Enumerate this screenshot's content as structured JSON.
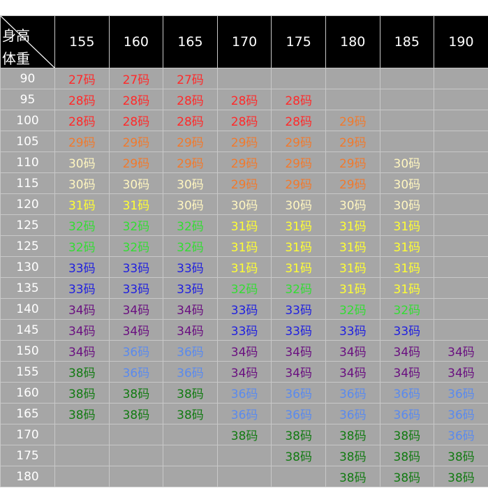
{
  "corner": {
    "top": "身高",
    "bottom": "体重"
  },
  "heights": [
    "155",
    "160",
    "165",
    "170",
    "175",
    "180",
    "185",
    "190"
  ],
  "colors": {
    "red": "#ff2a2a",
    "orange": "#f07a2e",
    "cream": "#fff6c0",
    "yellow": "#ffff33",
    "green": "#33dd33",
    "blue": "#1f1fe0",
    "purple": "#6a1080",
    "light_blue": "#5a8aee",
    "dark_green": "#117a11"
  },
  "rows": [
    {
      "weight": "90",
      "cells": [
        [
          "27码",
          "red"
        ],
        [
          "27码",
          "red"
        ],
        [
          "27码",
          "red"
        ],
        null,
        null,
        null,
        null,
        null
      ]
    },
    {
      "weight": "95",
      "cells": [
        [
          "28码",
          "red"
        ],
        [
          "28码",
          "red"
        ],
        [
          "28码",
          "red"
        ],
        [
          "28码",
          "red"
        ],
        [
          "28码",
          "red"
        ],
        null,
        null,
        null
      ]
    },
    {
      "weight": "100",
      "cells": [
        [
          "28码",
          "red"
        ],
        [
          "28码",
          "red"
        ],
        [
          "28码",
          "red"
        ],
        [
          "28码",
          "red"
        ],
        [
          "28码",
          "red"
        ],
        [
          "29码",
          "orange"
        ],
        null,
        null
      ]
    },
    {
      "weight": "105",
      "cells": [
        [
          "29码",
          "orange"
        ],
        [
          "29码",
          "orange"
        ],
        [
          "29码",
          "orange"
        ],
        [
          "29码",
          "orange"
        ],
        [
          "29码",
          "orange"
        ],
        [
          "29码",
          "orange"
        ],
        null,
        null
      ]
    },
    {
      "weight": "110",
      "cells": [
        [
          "30码",
          "cream"
        ],
        [
          "29码",
          "orange"
        ],
        [
          "29码",
          "orange"
        ],
        [
          "29码",
          "orange"
        ],
        [
          "29码",
          "orange"
        ],
        [
          "29码",
          "orange"
        ],
        [
          "30码",
          "cream"
        ],
        null
      ]
    },
    {
      "weight": "115",
      "cells": [
        [
          "30码",
          "cream"
        ],
        [
          "30码",
          "cream"
        ],
        [
          "30码",
          "cream"
        ],
        [
          "29码",
          "orange"
        ],
        [
          "29码",
          "orange"
        ],
        [
          "29码",
          "orange"
        ],
        [
          "30码",
          "cream"
        ],
        null
      ]
    },
    {
      "weight": "120",
      "cells": [
        [
          "31码",
          "yellow"
        ],
        [
          "31码",
          "yellow"
        ],
        [
          "30码",
          "cream"
        ],
        [
          "30码",
          "cream"
        ],
        [
          "30码",
          "cream"
        ],
        [
          "30码",
          "cream"
        ],
        [
          "30码",
          "cream"
        ],
        null
      ]
    },
    {
      "weight": "125",
      "cells": [
        [
          "32码",
          "green"
        ],
        [
          "32码",
          "green"
        ],
        [
          "32码",
          "green"
        ],
        [
          "31码",
          "yellow"
        ],
        [
          "31码",
          "yellow"
        ],
        [
          "31码",
          "yellow"
        ],
        [
          "31码",
          "yellow"
        ],
        null
      ]
    },
    {
      "weight": "125",
      "cells": [
        [
          "32码",
          "green"
        ],
        [
          "32码",
          "green"
        ],
        [
          "32码",
          "green"
        ],
        [
          "31码",
          "yellow"
        ],
        [
          "31码",
          "yellow"
        ],
        [
          "31码",
          "yellow"
        ],
        [
          "31码",
          "yellow"
        ],
        null
      ]
    },
    {
      "weight": "130",
      "cells": [
        [
          "33码",
          "blue"
        ],
        [
          "33码",
          "blue"
        ],
        [
          "33码",
          "blue"
        ],
        [
          "31码",
          "yellow"
        ],
        [
          "31码",
          "yellow"
        ],
        [
          "31码",
          "yellow"
        ],
        [
          "31码",
          "yellow"
        ],
        null
      ]
    },
    {
      "weight": "135",
      "cells": [
        [
          "33码",
          "blue"
        ],
        [
          "33码",
          "blue"
        ],
        [
          "33码",
          "blue"
        ],
        [
          "32码",
          "green"
        ],
        [
          "32码",
          "green"
        ],
        [
          "31码",
          "yellow"
        ],
        [
          "31码",
          "yellow"
        ],
        null
      ]
    },
    {
      "weight": "140",
      "cells": [
        [
          "34码",
          "purple"
        ],
        [
          "34码",
          "purple"
        ],
        [
          "34码",
          "purple"
        ],
        [
          "33码",
          "blue"
        ],
        [
          "33码",
          "blue"
        ],
        [
          "32码",
          "green"
        ],
        [
          "32码",
          "green"
        ],
        null
      ]
    },
    {
      "weight": "145",
      "cells": [
        [
          "34码",
          "purple"
        ],
        [
          "34码",
          "purple"
        ],
        [
          "34码",
          "purple"
        ],
        [
          "33码",
          "blue"
        ],
        [
          "33码",
          "blue"
        ],
        [
          "33码",
          "blue"
        ],
        [
          "33码",
          "blue"
        ],
        null
      ]
    },
    {
      "weight": "150",
      "cells": [
        [
          "34码",
          "purple"
        ],
        [
          "36码",
          "light_blue"
        ],
        [
          "36码",
          "light_blue"
        ],
        [
          "34码",
          "purple"
        ],
        [
          "34码",
          "purple"
        ],
        [
          "34码",
          "purple"
        ],
        [
          "34码",
          "purple"
        ],
        [
          "34码",
          "purple"
        ]
      ]
    },
    {
      "weight": "155",
      "cells": [
        [
          "38码",
          "dark_green"
        ],
        [
          "36码",
          "light_blue"
        ],
        [
          "36码",
          "light_blue"
        ],
        [
          "34码",
          "purple"
        ],
        [
          "34码",
          "purple"
        ],
        [
          "34码",
          "purple"
        ],
        [
          "34码",
          "purple"
        ],
        [
          "34码",
          "purple"
        ]
      ]
    },
    {
      "weight": "160",
      "cells": [
        [
          "38码",
          "dark_green"
        ],
        [
          "38码",
          "dark_green"
        ],
        [
          "38码",
          "dark_green"
        ],
        [
          "36码",
          "light_blue"
        ],
        [
          "36码",
          "light_blue"
        ],
        [
          "36码",
          "light_blue"
        ],
        [
          "36码",
          "light_blue"
        ],
        [
          "36码",
          "light_blue"
        ]
      ]
    },
    {
      "weight": "165",
      "cells": [
        [
          "38码",
          "dark_green"
        ],
        [
          "38码",
          "dark_green"
        ],
        [
          "38码",
          "dark_green"
        ],
        [
          "36码",
          "light_blue"
        ],
        [
          "36码",
          "light_blue"
        ],
        [
          "36码",
          "light_blue"
        ],
        [
          "36码",
          "light_blue"
        ],
        [
          "36码",
          "light_blue"
        ]
      ]
    },
    {
      "weight": "170",
      "cells": [
        null,
        null,
        null,
        [
          "38码",
          "dark_green"
        ],
        [
          "38码",
          "dark_green"
        ],
        [
          "38码",
          "dark_green"
        ],
        [
          "38码",
          "dark_green"
        ],
        [
          "36码",
          "light_blue"
        ]
      ]
    },
    {
      "weight": "175",
      "cells": [
        null,
        null,
        null,
        null,
        [
          "38码",
          "dark_green"
        ],
        [
          "38码",
          "dark_green"
        ],
        [
          "38码",
          "dark_green"
        ],
        [
          "38码",
          "dark_green"
        ]
      ]
    },
    {
      "weight": "180",
      "cells": [
        null,
        null,
        null,
        null,
        null,
        [
          "38码",
          "dark_green"
        ],
        [
          "38码",
          "dark_green"
        ],
        [
          "38码",
          "dark_green"
        ]
      ]
    }
  ]
}
